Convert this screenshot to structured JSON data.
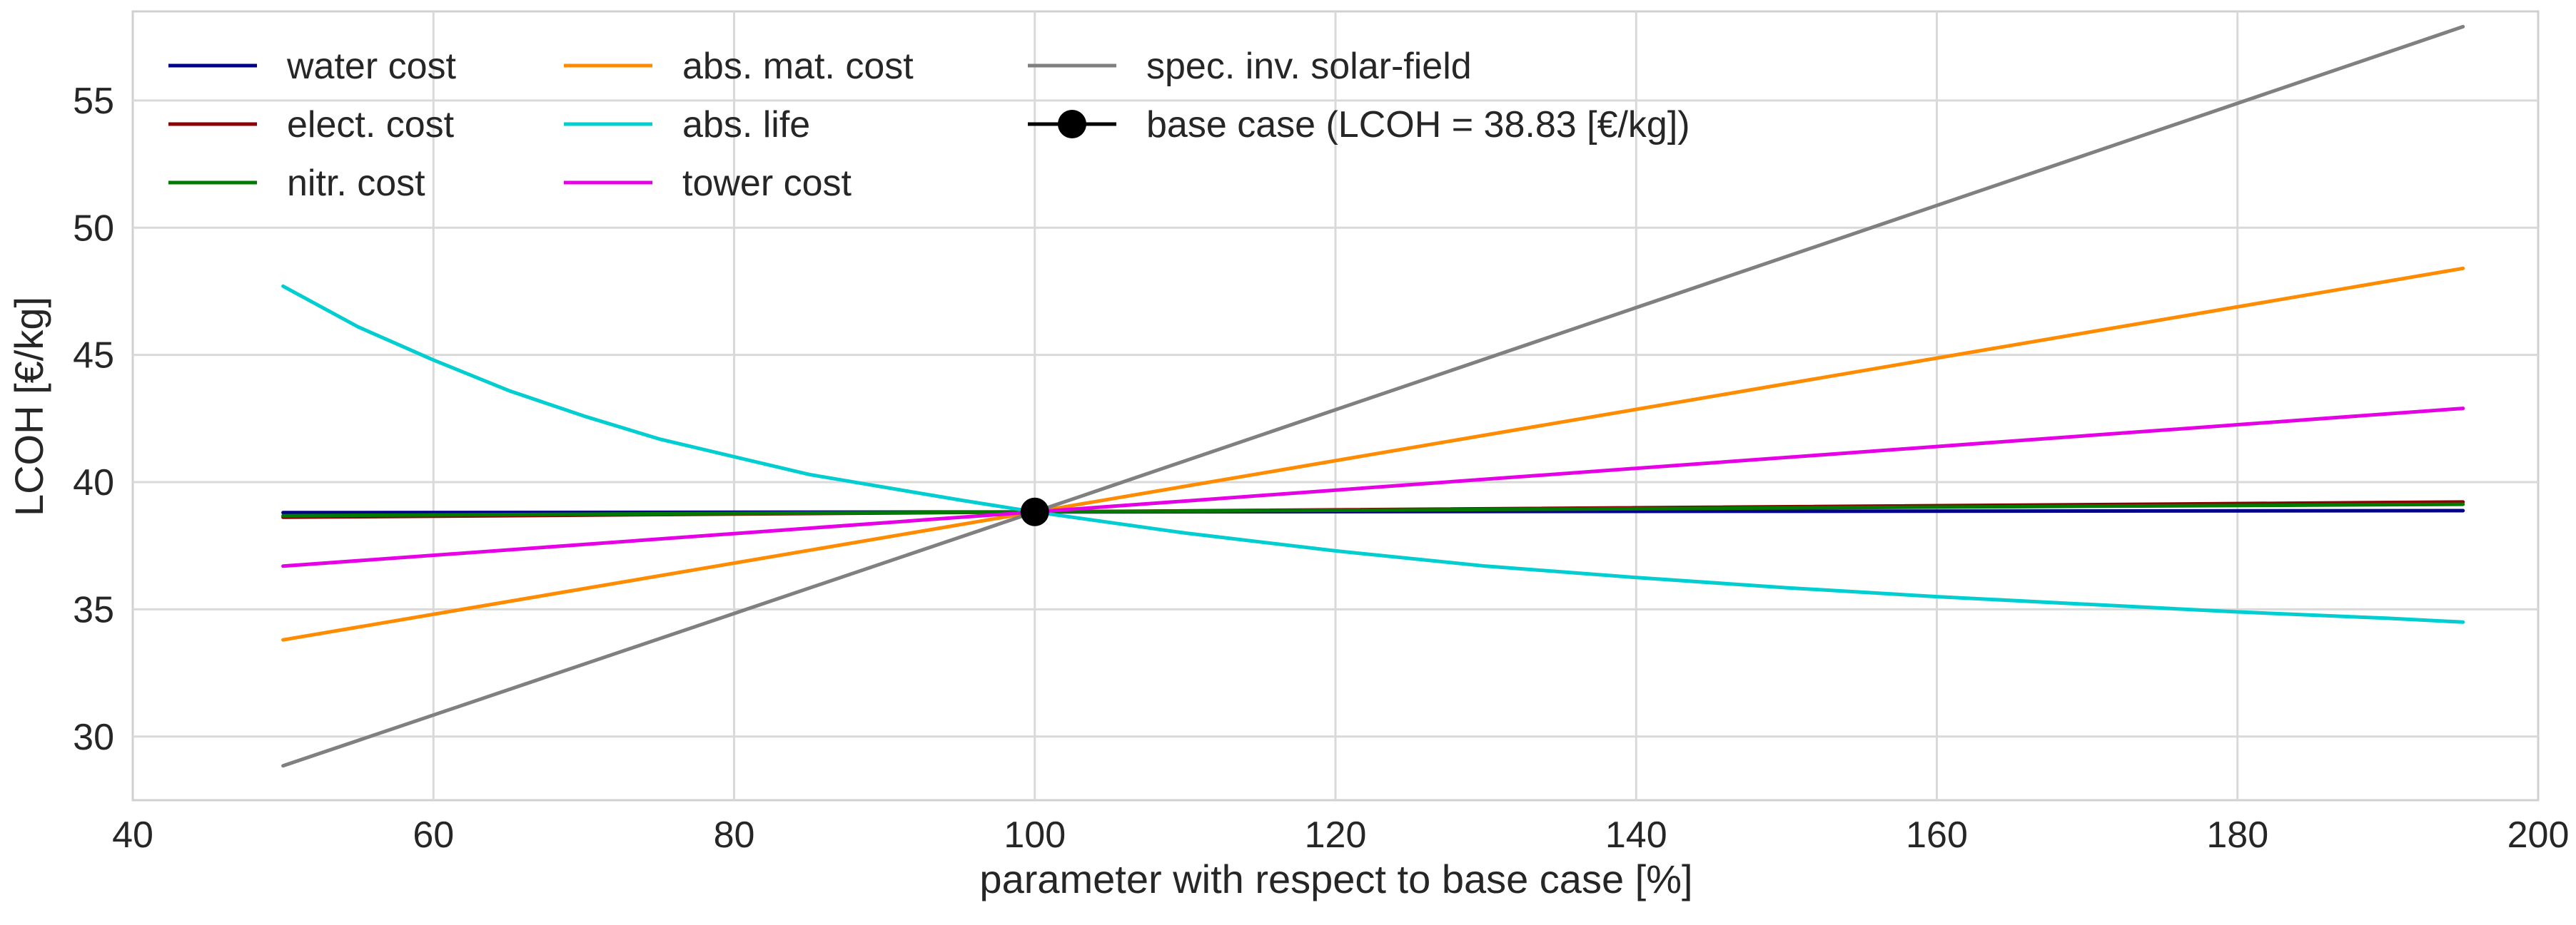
{
  "chart_data": {
    "type": "line",
    "title": "",
    "xlabel": "parameter with respect to base case [%]",
    "ylabel": "LCOH [€/kg]",
    "xlim": [
      40,
      200
    ],
    "ylim": [
      27.5,
      58.5
    ],
    "xticks": [
      40,
      60,
      80,
      100,
      120,
      140,
      160,
      180,
      200
    ],
    "yticks": [
      30,
      35,
      40,
      45,
      50,
      55
    ],
    "grid": true,
    "legend_position": "top-left",
    "series": [
      {
        "name": "water cost",
        "color": "#00008B",
        "x": [
          50,
          100,
          195
        ],
        "y": [
          38.8,
          38.83,
          38.88
        ]
      },
      {
        "name": "elect. cost",
        "color": "#8B0000",
        "x": [
          50,
          100,
          195
        ],
        "y": [
          38.62,
          38.83,
          39.22
        ]
      },
      {
        "name": "nitr. cost",
        "color": "#007A00",
        "x": [
          50,
          100,
          195
        ],
        "y": [
          38.68,
          38.83,
          39.13
        ]
      },
      {
        "name": "abs. mat. cost",
        "color": "#FF8C00",
        "x": [
          50,
          100,
          195
        ],
        "y": [
          33.8,
          38.83,
          48.4
        ]
      },
      {
        "name": "abs. life",
        "color": "#00CED1",
        "x": [
          50,
          55,
          60,
          65,
          70,
          75,
          80,
          85,
          90,
          95,
          100,
          110,
          120,
          130,
          140,
          150,
          160,
          170,
          180,
          190,
          195
        ],
        "y": [
          47.7,
          46.1,
          44.8,
          43.6,
          42.6,
          41.7,
          41.0,
          40.3,
          39.8,
          39.3,
          38.83,
          38.0,
          37.3,
          36.7,
          36.25,
          35.85,
          35.5,
          35.2,
          34.9,
          34.65,
          34.5
        ]
      },
      {
        "name": "tower cost",
        "color": "#E600E6",
        "x": [
          50,
          100,
          195
        ],
        "y": [
          36.7,
          38.83,
          42.9
        ]
      },
      {
        "name": "spec. inv. solar-field",
        "color": "#808080",
        "x": [
          50,
          100,
          195
        ],
        "y": [
          28.85,
          38.83,
          57.9
        ]
      }
    ],
    "base_case": {
      "name": "base case (LCOH = 38.83 [€/kg])",
      "x": 100,
      "y": 38.83,
      "color": "#000000"
    }
  }
}
